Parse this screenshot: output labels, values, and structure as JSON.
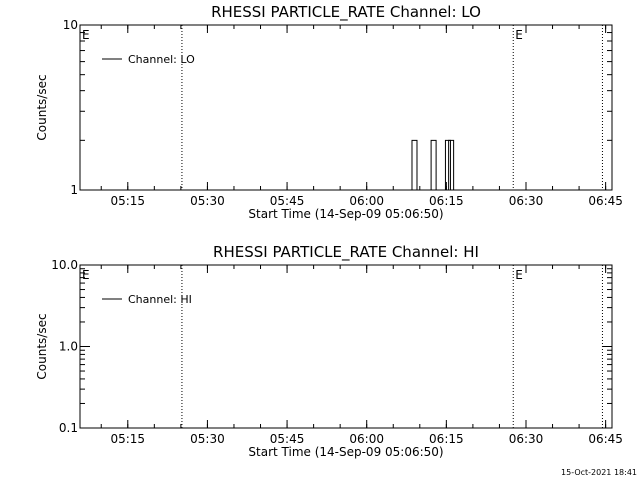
{
  "footer": {
    "timestamp": "15-Oct-2021 18:41"
  },
  "chart_data": [
    {
      "type": "line",
      "title": "RHESSI PARTICLE_RATE Channel: LO",
      "xlabel": "Start Time (14-Sep-09 05:06:50)",
      "ylabel": "Counts/sec",
      "y_scale": "log",
      "ylim": [
        1,
        10
      ],
      "y_ticks": [
        {
          "value": 1,
          "label": "1"
        },
        {
          "value": 10,
          "label": "10"
        }
      ],
      "xlim_minutes": [
        5.1,
        6.77
      ],
      "x_ticks": [
        {
          "value": 5.25,
          "label": "05:15"
        },
        {
          "value": 5.5,
          "label": "05:30"
        },
        {
          "value": 5.75,
          "label": "05:45"
        },
        {
          "value": 6.0,
          "label": "06:00"
        },
        {
          "value": 6.25,
          "label": "06:15"
        },
        {
          "value": 6.5,
          "label": "06:30"
        },
        {
          "value": 6.75,
          "label": "06:45"
        }
      ],
      "vertical_markers": [
        5.42,
        6.46,
        6.74
      ],
      "marker_labels": [
        {
          "x": 5.1,
          "label": "E"
        },
        {
          "x": 6.46,
          "label": "E"
        }
      ],
      "legend": {
        "position": "top-left",
        "entries": [
          "Channel: LO"
        ]
      },
      "series": [
        {
          "name": "Channel: LO",
          "spikes": [
            {
              "x": 6.15,
              "y": 2
            },
            {
              "x": 6.21,
              "y": 2
            },
            {
              "x": 6.255,
              "y": 2
            },
            {
              "x": 6.265,
              "y": 2
            }
          ]
        }
      ]
    },
    {
      "type": "line",
      "title": "RHESSI PARTICLE_RATE Channel: HI",
      "xlabel": "Start Time (14-Sep-09 05:06:50)",
      "ylabel": "Counts/sec",
      "y_scale": "log",
      "ylim": [
        0.1,
        10
      ],
      "y_ticks": [
        {
          "value": 0.1,
          "label": "0.1"
        },
        {
          "value": 1,
          "label": "1.0"
        },
        {
          "value": 10,
          "label": "10.0"
        }
      ],
      "xlim_minutes": [
        5.1,
        6.77
      ],
      "x_ticks": [
        {
          "value": 5.25,
          "label": "05:15"
        },
        {
          "value": 5.5,
          "label": "05:30"
        },
        {
          "value": 5.75,
          "label": "05:45"
        },
        {
          "value": 6.0,
          "label": "06:00"
        },
        {
          "value": 6.25,
          "label": "06:15"
        },
        {
          "value": 6.5,
          "label": "06:30"
        },
        {
          "value": 6.75,
          "label": "06:45"
        }
      ],
      "vertical_markers": [
        5.42,
        6.46,
        6.74
      ],
      "marker_labels": [
        {
          "x": 5.1,
          "label": "E"
        },
        {
          "x": 6.46,
          "label": "E"
        }
      ],
      "legend": {
        "position": "top-left",
        "entries": [
          "Channel: HI"
        ]
      },
      "series": [
        {
          "name": "Channel: HI",
          "spikes": []
        }
      ]
    }
  ]
}
